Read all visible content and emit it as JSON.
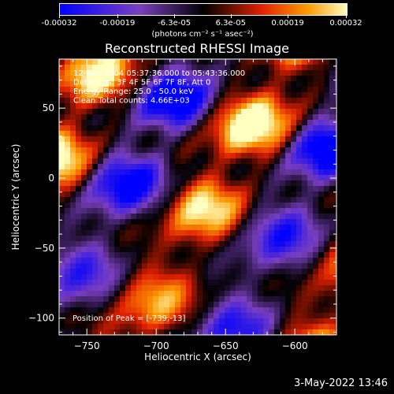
{
  "chart_data": {
    "type": "heatmap",
    "title": "Reconstructed RHESSI Image",
    "xlabel": "Heliocentric X (arcsec)",
    "ylabel": "Heliocentric Y (arcsec)",
    "xlim": [
      -770,
      -570
    ],
    "ylim": [
      -112,
      85
    ],
    "xticks": [
      -750,
      -700,
      -650,
      -600
    ],
    "yticks": [
      50,
      0,
      -50,
      -100
    ],
    "colorbar": {
      "range": [
        -0.00032,
        0.00032
      ],
      "tick_labels": [
        "-0.00032",
        "-0.00019",
        "-6.3e-05",
        "6.3e-05",
        "0.00019",
        "0.00032"
      ],
      "unit": "(photons cm⁻² s⁻¹ asec⁻²)"
    },
    "colors": {
      "low": "#0000ff",
      "mid_low": "#7a3fc0",
      "zero": "#000000",
      "mid_high": "#e02000",
      "high_orange": "#ff9900",
      "peak": "#ffffc0"
    },
    "annotations": [
      "12-Sep-2004 05:37:36.000 to 05:43:36.000",
      "Detectors: 3F 4F 5F 6F 7F 8F, Att 0",
      "Energy Range: 25.0 - 50.0 keV",
      "Clean    Total counts: 4.66E+03"
    ],
    "peak_text": "Position of Peak = [-739,-13]",
    "peak_position": [
      -739,
      -13
    ],
    "pattern": "diagonal stripes of alternating positive (red/yellow) and negative (purple/blue) flux"
  },
  "footer": {
    "timestamp": "3-May-2022 13:46"
  }
}
